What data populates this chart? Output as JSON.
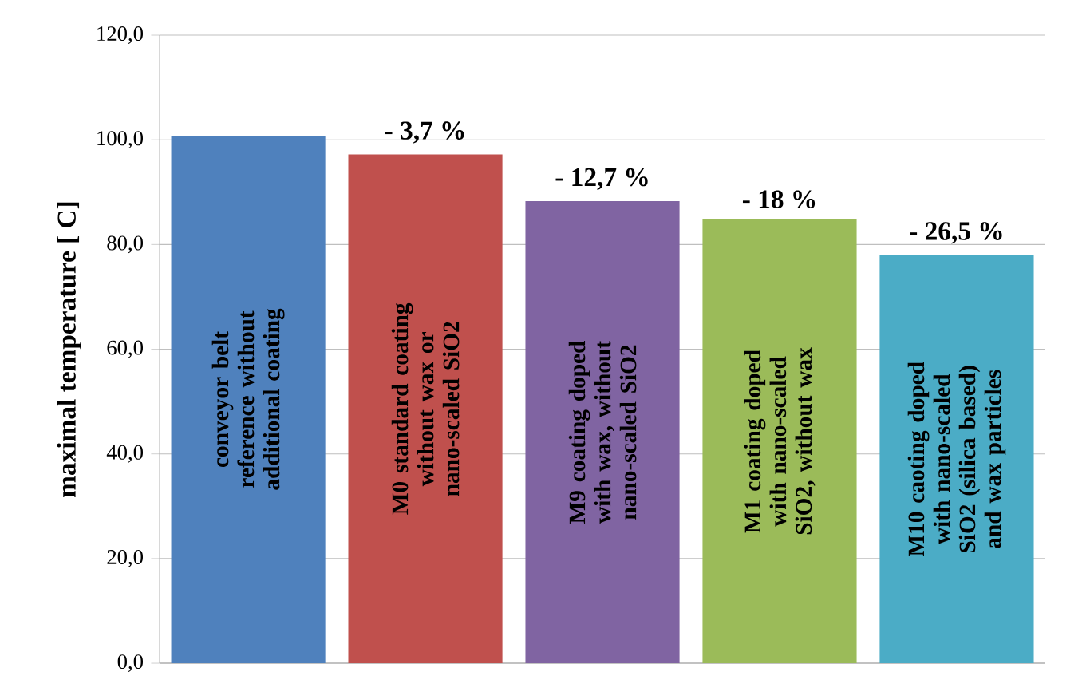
{
  "chart_data": {
    "type": "bar",
    "ylabel": "maximal temperature [ C]",
    "categories": [
      "conveyor belt reference without additional coating",
      "M0 standard coating without wax or nano-scaled SiO2",
      "M9 coating doped with wax, without nano-scaled SiO2",
      "M1 coating doped with nano-scaled SiO2, without wax",
      "M10 caoting doped with nano-scaled SiO2 (silica based) and wax particles"
    ],
    "values": [
      100.8,
      97.2,
      88.3,
      84.8,
      78.0
    ],
    "colors": [
      "#4f81bd",
      "#c0504d",
      "#8064a2",
      "#9bbb59",
      "#4bacc6"
    ],
    "ylim": [
      0,
      120
    ],
    "yticks": [
      {
        "value": 0,
        "label": "0,0"
      },
      {
        "value": 20,
        "label": "20,0"
      },
      {
        "value": 40,
        "label": "40,0"
      },
      {
        "value": 60,
        "label": "60,0"
      },
      {
        "value": 80,
        "label": "80,0"
      },
      {
        "value": 100,
        "label": "100,0"
      },
      {
        "value": 120,
        "label": "120,0"
      }
    ],
    "grid": "y",
    "annotations": [
      {
        "text": "- 3,7 %",
        "y": 97.2
      },
      {
        "text": "- 12,7 %",
        "y": 88.3
      },
      {
        "text": "- 18 %",
        "y": 84.8
      },
      {
        "text": "- 26,5 %",
        "y": 78.0
      }
    ]
  }
}
